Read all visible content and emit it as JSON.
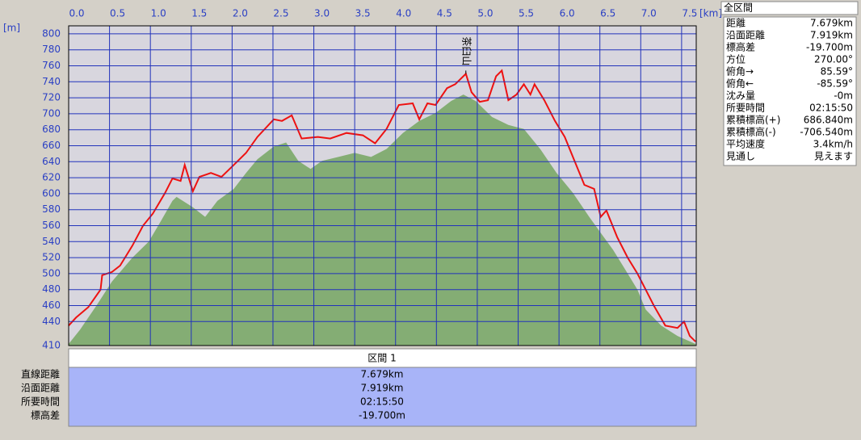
{
  "chart_data": {
    "type": "line",
    "x_unit": "[km]",
    "y_unit": "[m]",
    "xlim": [
      0,
      7.679
    ],
    "ylim": [
      410,
      810
    ],
    "xticks": [
      {
        "value": 0,
        "label": "0.0"
      },
      0.5,
      {
        "value": 1,
        "label": "1.0"
      },
      1.5,
      {
        "value": 2,
        "label": "2.0"
      },
      2.5,
      {
        "value": 3,
        "label": "3.0"
      },
      3.5,
      {
        "value": 4,
        "label": "4.0"
      },
      4.5,
      {
        "value": 5,
        "label": "5.0"
      },
      5.5,
      {
        "value": 6,
        "label": "6.0"
      },
      6.5,
      {
        "value": 7,
        "label": "7.0"
      },
      7.5
    ],
    "yticks": [
      410,
      440,
      460,
      480,
      500,
      520,
      540,
      560,
      580,
      600,
      620,
      640,
      660,
      680,
      700,
      720,
      740,
      760,
      780,
      800
    ],
    "grid": true,
    "series": [
      {
        "color": "#84ad74",
        "fill": true,
        "x": [
          0,
          0.14,
          0.34,
          0.53,
          0.78,
          0.98,
          1.13,
          1.27,
          1.32,
          1.52,
          1.67,
          1.82,
          2.02,
          2.17,
          2.31,
          2.51,
          2.66,
          2.81,
          2.96,
          3.1,
          3.3,
          3.5,
          3.7,
          3.89,
          4.09,
          4.29,
          4.49,
          4.68,
          4.83,
          4.98,
          5.18,
          5.38,
          5.57,
          5.77,
          5.97,
          6.17,
          6.37,
          6.51,
          6.66,
          6.81,
          6.96,
          7.06,
          7.25,
          7.45,
          7.67
        ],
        "values": [
          412,
          430,
          460,
          490,
          520,
          540,
          566,
          591,
          596,
          583,
          571,
          591,
          606,
          626,
          643,
          659,
          664,
          641,
          631,
          641,
          646,
          651,
          646,
          656,
          676,
          691,
          701,
          716,
          724,
          716,
          696,
          686,
          681,
          656,
          626,
          601,
          571,
          551,
          530,
          505,
          480,
          455,
          435,
          422,
          412
        ]
      },
      {
        "color": "#ee1111",
        "fill": false,
        "x": [
          0,
          0.09,
          0.24,
          0.39,
          0.41,
          0.53,
          0.63,
          0.78,
          0.91,
          1.03,
          1.18,
          1.27,
          1.37,
          1.42,
          1.52,
          1.6,
          1.74,
          1.87,
          2.02,
          2.17,
          2.31,
          2.51,
          2.61,
          2.73,
          2.85,
          3.05,
          3.2,
          3.4,
          3.6,
          3.75,
          3.89,
          4.04,
          4.21,
          4.29,
          4.39,
          4.49,
          4.63,
          4.73,
          4.86,
          4.93,
          5.03,
          5.13,
          5.23,
          5.3,
          5.38,
          5.48,
          5.57,
          5.65,
          5.7,
          5.82,
          5.95,
          6.07,
          6.19,
          6.31,
          6.43,
          6.51,
          6.58,
          6.71,
          6.84,
          6.96,
          7.06,
          7.16,
          7.3,
          7.45,
          7.53,
          7.6,
          7.67
        ],
        "values": [
          435,
          445,
          458,
          480,
          498,
          502,
          510,
          535,
          560,
          575,
          601,
          619,
          616,
          636,
          603,
          621,
          626,
          621,
          636,
          651,
          671,
          693,
          691,
          698,
          669,
          671,
          669,
          676,
          673,
          663,
          681,
          711,
          713,
          693,
          713,
          711,
          732,
          737,
          750,
          727,
          715,
          717,
          747,
          754,
          717,
          724,
          737,
          724,
          737,
          717,
          691,
          671,
          641,
          611,
          606,
          571,
          579,
          546,
          520,
          500,
          480,
          460,
          435,
          432,
          440,
          422,
          415
        ]
      }
    ],
    "annotations": [
      {
        "text": "茶臼山",
        "x": 4.86,
        "y": 750
      }
    ]
  },
  "summary_panel": {
    "title": "全区間",
    "rows": [
      [
        "距離",
        "7.679km"
      ],
      [
        "沿面距離",
        "7.919km"
      ],
      [
        "標高差",
        "-19.700m"
      ],
      [
        "方位",
        "270.00°"
      ],
      [
        "俯角→",
        "85.59°"
      ],
      [
        "俯角←",
        "-85.59°"
      ],
      [
        "沈み量",
        "-0m"
      ],
      [
        "所要時間",
        "02:15:50"
      ],
      [
        "累積標高(+)",
        "686.840m"
      ],
      [
        "累積標高(-)",
        "-706.540m"
      ],
      [
        "平均速度",
        "3.4km/h"
      ],
      [
        "見通し",
        "見えます"
      ]
    ]
  },
  "section_table": {
    "header": "区間 1",
    "rows": [
      [
        "直線距離",
        "7.679km"
      ],
      [
        "沿面距離",
        "7.919km"
      ],
      [
        "所要時間",
        "02:15:50"
      ],
      [
        "標高差",
        "-19.700m"
      ]
    ]
  }
}
